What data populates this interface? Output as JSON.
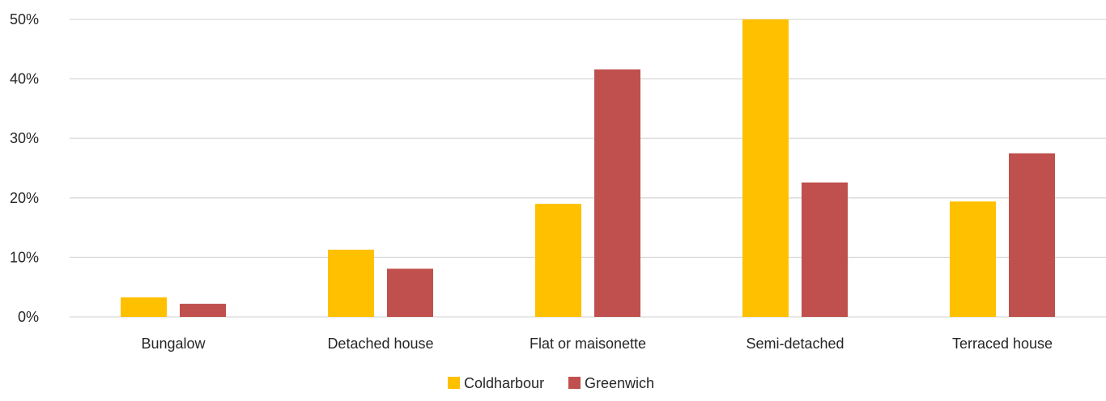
{
  "chart_data": {
    "type": "bar",
    "title": "",
    "xlabel": "",
    "ylabel": "",
    "categories": [
      "Bungalow",
      "Detached house",
      "Flat or maisonette",
      "Semi-detached",
      "Terraced house"
    ],
    "series": [
      {
        "name": "Coldharbour",
        "color": "#FFC000",
        "values": [
          3.3,
          11.3,
          19.0,
          50.0,
          19.4
        ]
      },
      {
        "name": "Greenwich",
        "color": "#C0504D",
        "values": [
          2.2,
          8.1,
          41.6,
          22.6,
          27.5
        ]
      }
    ],
    "ylim": [
      0,
      50
    ],
    "yticks": [
      0,
      10,
      20,
      30,
      40,
      50
    ],
    "ytick_labels": [
      "0%",
      "10%",
      "20%",
      "30%",
      "40%",
      "50%"
    ],
    "value_format": "percent",
    "grid": true,
    "gridline_color": "#D9D9D9",
    "legend_position": "bottom"
  }
}
